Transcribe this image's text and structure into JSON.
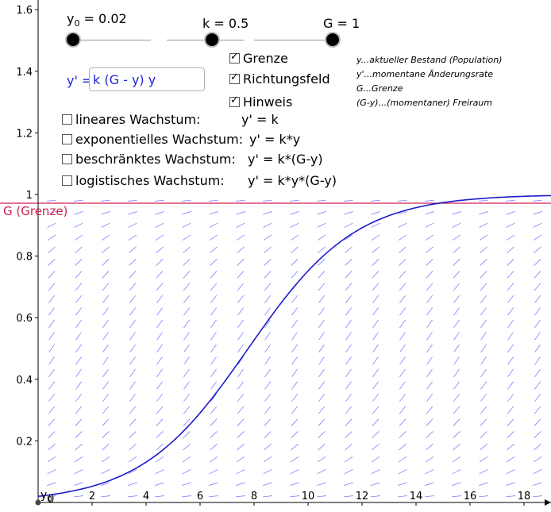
{
  "graph": {
    "x_ticks": [
      "0",
      "2",
      "4",
      "6",
      "8",
      "10",
      "12",
      "14",
      "16",
      "18"
    ],
    "y_ticks": [
      "0.2",
      "0.4",
      "0.6",
      "0.8",
      "1",
      "1.2",
      "1.4",
      "1.6"
    ],
    "origin_label": "0",
    "y0_point_label": "y",
    "y0_point_sub": "0",
    "limit_label": "G (Grenze)",
    "colors": {
      "curve": "#1a1acc",
      "limit": "#cc2050",
      "field": "#8080ff",
      "axis": "#000000"
    }
  },
  "sliders": {
    "y0": {
      "prefix": "y",
      "sub": "0",
      "suffix": " = 0.02",
      "value": 0.02,
      "fraction": 0.0
    },
    "k": {
      "text": "k = 0.5",
      "value": 0.5,
      "fraction": 0.5
    },
    "G": {
      "text": "G = 1",
      "value": 1,
      "fraction": 1.0
    }
  },
  "checkboxes": {
    "grenze": {
      "label": "Grenze",
      "checked": true
    },
    "richtungsfeld": {
      "label": "Richtungsfeld",
      "checked": true
    },
    "hinweis": {
      "label": "Hinweis",
      "checked": true
    }
  },
  "equation_input": {
    "prefix": "y' = ",
    "value": "k (G - y) y"
  },
  "models": [
    {
      "name": "lineares Wachstum:",
      "formula": "y' = k",
      "checked": false
    },
    {
      "name": "exponentielles Wachstum:",
      "formula": "y' = k*y",
      "checked": false
    },
    {
      "name": "beschränktes Wachstum:",
      "formula": "y' = k*(G-y)",
      "checked": false
    },
    {
      "name": "logistisches Wachstum:",
      "formula": "y' = k*y*(G-y)",
      "checked": false
    }
  ],
  "legend": [
    "y...aktueller Bestand (Population)",
    "y'...momentane Änderungsrate",
    "G...Grenze",
    "(G-y)...(momentaner) Freiraum"
  ]
}
